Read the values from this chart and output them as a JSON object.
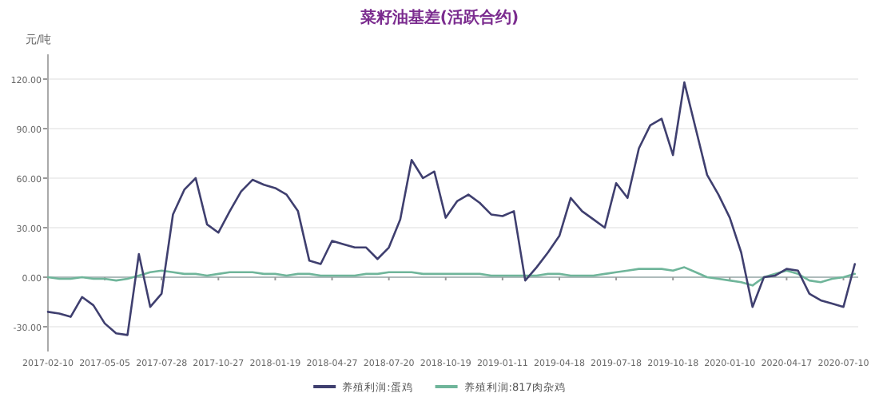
{
  "chart_data": {
    "type": "line",
    "title": "菜籽油基差(活跃合约)",
    "ylabel": "元/吨",
    "categories": [
      "2017-02-10",
      null,
      null,
      null,
      null,
      "2017-05-05",
      null,
      null,
      null,
      null,
      "2017-07-28",
      null,
      null,
      null,
      null,
      "2017-10-27",
      null,
      null,
      null,
      null,
      "2018-01-19",
      null,
      null,
      null,
      null,
      "2018-04-27",
      null,
      null,
      null,
      null,
      "2018-07-20",
      null,
      null,
      null,
      null,
      "2018-10-19",
      null,
      null,
      null,
      null,
      "2019-01-11",
      null,
      null,
      null,
      null,
      "2019-04-18",
      null,
      null,
      null,
      null,
      "2019-07-18",
      null,
      null,
      null,
      null,
      "2019-10-18",
      null,
      null,
      null,
      null,
      "2020-01-10",
      null,
      null,
      null,
      null,
      "2020-04-17",
      null,
      null,
      null,
      null,
      "2020-07-10",
      null
    ],
    "series": [
      {
        "name": "养殖利润:蛋鸡",
        "color": "#3f3f6f",
        "values": [
          -21,
          -22,
          -24,
          -12,
          -17,
          -28,
          -34,
          -35,
          14,
          -18,
          -10,
          38,
          53,
          60,
          32,
          27,
          40,
          52,
          59,
          56,
          54,
          50,
          40,
          10,
          8,
          22,
          20,
          18,
          18,
          11,
          18,
          35,
          71,
          60,
          64,
          36,
          46,
          50,
          45,
          38,
          37,
          40,
          -2,
          6,
          15,
          25,
          48,
          40,
          35,
          30,
          57,
          48,
          78,
          92,
          96,
          74,
          118,
          90,
          62,
          50,
          36,
          15,
          -18,
          0,
          1,
          5,
          4,
          -10,
          -14,
          -16,
          -18,
          8
        ]
      },
      {
        "name": "养殖利润:817肉杂鸡",
        "color": "#6fb59a",
        "values": [
          0,
          -1,
          -1,
          0,
          -1,
          -1,
          -2,
          -1,
          1,
          3,
          4,
          3,
          2,
          2,
          1,
          2,
          3,
          3,
          3,
          2,
          2,
          1,
          2,
          2,
          1,
          1,
          1,
          1,
          2,
          2,
          3,
          3,
          3,
          2,
          2,
          2,
          2,
          2,
          2,
          1,
          1,
          1,
          1,
          1,
          2,
          2,
          1,
          1,
          1,
          2,
          3,
          4,
          5,
          5,
          5,
          4,
          6,
          3,
          0,
          -1,
          -2,
          -3,
          -5,
          0,
          2,
          4,
          2,
          -2,
          -3,
          -1,
          0,
          2
        ]
      }
    ],
    "ylim": [
      -45,
      135
    ],
    "yticks": [
      {
        "value": -30,
        "label": "-30.00"
      },
      {
        "value": 0,
        "label": "0.00"
      },
      {
        "value": 30,
        "label": "30.00"
      },
      {
        "value": 60,
        "label": "60.00"
      },
      {
        "value": 90,
        "label": "90.00"
      },
      {
        "value": 120,
        "label": "120.00"
      }
    ],
    "grid": "y",
    "legend": "bottom"
  }
}
